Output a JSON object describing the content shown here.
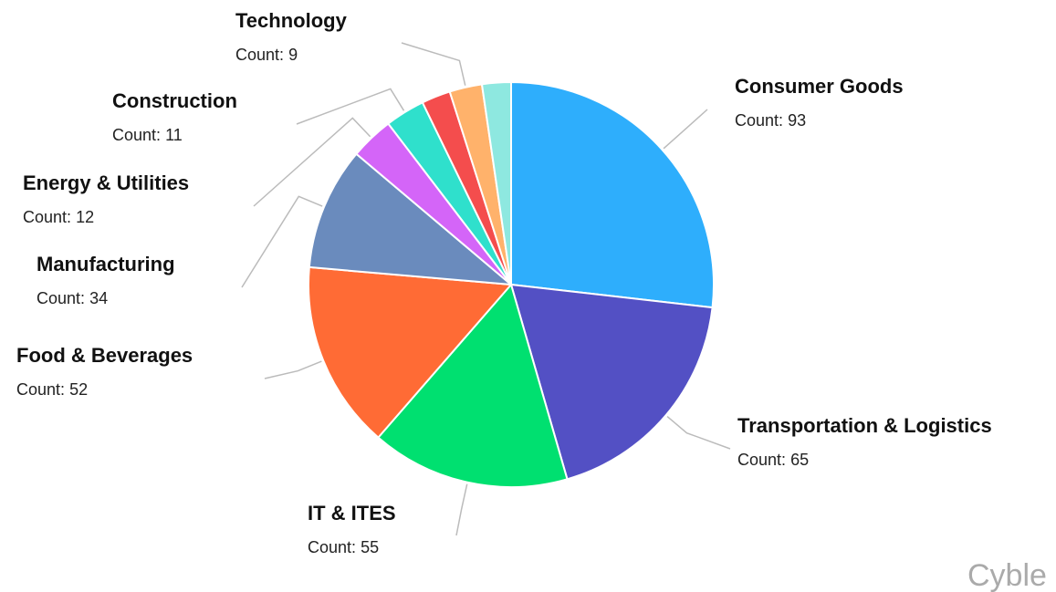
{
  "chart_data": {
    "type": "pie",
    "categories": [
      "Consumer Goods",
      "Transportation & Logistics",
      "IT & ITES",
      "Food & Beverages",
      "Manufacturing",
      "Energy & Utilities",
      "Construction",
      null,
      "Technology",
      null
    ],
    "values": [
      93,
      65,
      55,
      52,
      34,
      12,
      11,
      8,
      9,
      8
    ],
    "colors": [
      "#2eaefc",
      "#5350c4",
      "#00e070",
      "#ff6b35",
      "#6a8bbd",
      "#d465f8",
      "#2fe0cc",
      "#f44d4d",
      "#ffb26b",
      "#8ee8e0"
    ],
    "count_label": "Count:",
    "watermark": "Cyble"
  }
}
